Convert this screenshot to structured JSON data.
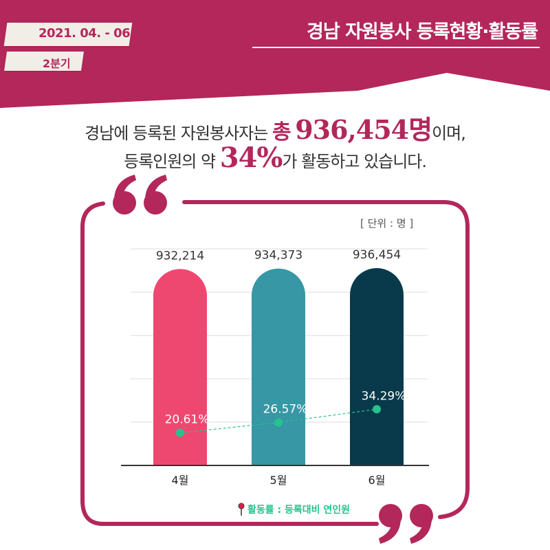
{
  "header": {
    "date_range": "2021. 04. - 06.",
    "quarter": "2분기",
    "title": "경남 자원봉사 등록현황·활동률"
  },
  "headline": {
    "line1_prefix": "경남에 등록된 자원봉사자는",
    "line1_total_word": "총",
    "line1_total_value": "936,454명",
    "line1_suffix": "이며,",
    "line2_prefix": "등록인원의 약",
    "line2_rate": "34%",
    "line2_suffix": "가 활동하고 있습니다."
  },
  "unit_label": "[ 단위 : 명 ]",
  "legend": {
    "label": "활동률 : 등록대비 연인원"
  },
  "colors": {
    "brand": "#b3275a",
    "bar_april": "#ef4870",
    "bar_may": "#3797a4",
    "bar_june": "#083a4b",
    "rate_line": "#25c48f"
  },
  "icons": {
    "pin": "pin-icon",
    "open_quote": "open-quote-icon",
    "close_quote": "close-quote-icon"
  },
  "chart_data": {
    "type": "bar",
    "categories": [
      "4월",
      "5월",
      "6월"
    ],
    "series": [
      {
        "values": [
          932214,
          934373,
          936454
        ],
        "value_labels": [
          "932,214",
          "934,373",
          "936,454"
        ]
      },
      {
        "type": "line",
        "values": [
          20.61,
          26.57,
          34.29
        ],
        "value_labels": [
          "20.61%",
          "26.57%",
          "34.29%"
        ]
      }
    ],
    "legend": "bottom-right",
    "grid": true
  }
}
